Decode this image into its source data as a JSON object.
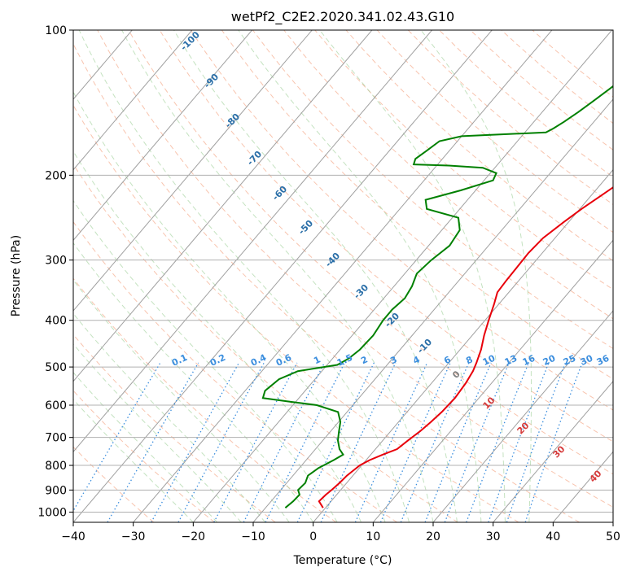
{
  "chart_data": {
    "type": "line",
    "title": "wetPf2_C2E2.2020.341.02.43.G10",
    "xlabel": "Temperature (°C)",
    "ylabel": "Pressure (hPa)",
    "xlim": [
      -40,
      50
    ],
    "ylim": [
      1050,
      100
    ],
    "y_scale": "log",
    "grid": true,
    "x_ticks": [
      -40,
      -30,
      -20,
      -10,
      0,
      10,
      20,
      30,
      40,
      50
    ],
    "y_ticks": [
      1000,
      900,
      800,
      700,
      600,
      500,
      400,
      300,
      200,
      100
    ],
    "x_tick_labels": [
      "−40",
      "−30",
      "−20",
      "−10",
      "0",
      "10",
      "20",
      "30",
      "40",
      "50"
    ],
    "y_tick_labels": [
      "1000",
      "900",
      "800",
      "700",
      "600",
      "500",
      "400",
      "300",
      "200",
      "100"
    ],
    "series": [
      {
        "color": "#e8000b",
        "points": [
          [
            980,
            -0.4
          ],
          [
            950,
            -2.0
          ],
          [
            920,
            -1.8
          ],
          [
            900,
            -1.5
          ],
          [
            870,
            -1.2
          ],
          [
            840,
            -1.0
          ],
          [
            800,
            -0.3
          ],
          [
            780,
            0.6
          ],
          [
            760,
            2.0
          ],
          [
            740,
            3.6
          ],
          [
            710,
            4.2
          ],
          [
            680,
            4.9
          ],
          [
            650,
            5.4
          ],
          [
            620,
            5.8
          ],
          [
            580,
            6.0
          ],
          [
            540,
            5.7
          ],
          [
            510,
            5.2
          ],
          [
            490,
            4.6
          ],
          [
            460,
            3.5
          ],
          [
            430,
            2.0
          ],
          [
            400,
            0.6
          ],
          [
            370,
            -0.8
          ],
          [
            350,
            -1.9
          ],
          [
            330,
            -2.1
          ],
          [
            310,
            -2.2
          ],
          [
            290,
            -2.3
          ],
          [
            270,
            -2.0
          ],
          [
            250,
            -0.8
          ],
          [
            235,
            0.3
          ],
          [
            220,
            1.7
          ],
          [
            205,
            3.2
          ],
          [
            190,
            4.9
          ],
          [
            180,
            6.0
          ],
          [
            172,
            6.4
          ],
          [
            165,
            6.5
          ],
          [
            155,
            6.4
          ],
          [
            145,
            6.4
          ],
          [
            138,
            6.9
          ],
          [
            130,
            7.6
          ],
          [
            122,
            8.2
          ],
          [
            115,
            9.1
          ],
          [
            108,
            9.6
          ],
          [
            100,
            9.9
          ]
        ]
      },
      {
        "color": "#008000",
        "points": [
          [
            980,
            -6.7
          ],
          [
            950,
            -6.3
          ],
          [
            920,
            -6.2
          ],
          [
            900,
            -7.1
          ],
          [
            870,
            -6.9
          ],
          [
            840,
            -7.5
          ],
          [
            810,
            -6.8
          ],
          [
            780,
            -5.4
          ],
          [
            760,
            -4.6
          ],
          [
            740,
            -6.0
          ],
          [
            710,
            -7.5
          ],
          [
            680,
            -8.6
          ],
          [
            650,
            -9.7
          ],
          [
            620,
            -11.5
          ],
          [
            600,
            -16.0
          ],
          [
            590,
            -21.0
          ],
          [
            580,
            -26.0
          ],
          [
            560,
            -26.7
          ],
          [
            530,
            -26.0
          ],
          [
            510,
            -24.0
          ],
          [
            495,
            -18.3
          ],
          [
            480,
            -17.3
          ],
          [
            460,
            -16.7
          ],
          [
            430,
            -16.5
          ],
          [
            400,
            -17.0
          ],
          [
            380,
            -17.0
          ],
          [
            360,
            -16.5
          ],
          [
            340,
            -17.0
          ],
          [
            320,
            -18.0
          ],
          [
            300,
            -17.5
          ],
          [
            280,
            -16.5
          ],
          [
            260,
            -17.0
          ],
          [
            245,
            -19.0
          ],
          [
            235,
            -25.5
          ],
          [
            225,
            -27.0
          ],
          [
            215,
            -22.5
          ],
          [
            205,
            -18.5
          ],
          [
            198,
            -19.0
          ],
          [
            193,
            -22.0
          ],
          [
            191,
            -28.0
          ],
          [
            190,
            -34.0
          ],
          [
            185,
            -34.5
          ],
          [
            178,
            -33.8
          ],
          [
            170,
            -33.0
          ],
          [
            166,
            -30.0
          ],
          [
            163,
            -16.5
          ],
          [
            160,
            -15.8
          ],
          [
            155,
            -15.0
          ],
          [
            148,
            -14.0
          ],
          [
            140,
            -13.0
          ],
          [
            132,
            -12.0
          ],
          [
            124,
            -11.0
          ],
          [
            116,
            -9.9
          ],
          [
            108,
            -8.7
          ],
          [
            100,
            -7.4
          ]
        ]
      }
    ],
    "dry_adiabat_labels": [
      "-100",
      "-90",
      "-80",
      "-70",
      "-60",
      "-50",
      "-40",
      "-30",
      "-20",
      "-10",
      "0",
      "10",
      "20",
      "30",
      "40"
    ],
    "mixing_ratio_labels": [
      "0.1",
      "0.2",
      "0.4",
      "0.6",
      "1",
      "1.5",
      "2",
      "3",
      "4",
      "6",
      "8",
      "10",
      "13",
      "16",
      "20",
      "25",
      "30",
      "36"
    ],
    "mixing_ratios": [
      0.1,
      0.2,
      0.4,
      0.6,
      1,
      1.5,
      2,
      3,
      4,
      6,
      8,
      10,
      13,
      16,
      20,
      25,
      30,
      36
    ],
    "colors": {
      "temperature": "#e8000b",
      "dewpoint": "#008000",
      "dry_adiabat": "#f4a582",
      "moist_adiabat": "#9ccf96",
      "mixing_ratio": "#3b8ede",
      "isotherm": "#a0a0a0",
      "dry_adiabat_label": "#2b6fa8",
      "warm_label": "#d63b3b"
    }
  }
}
